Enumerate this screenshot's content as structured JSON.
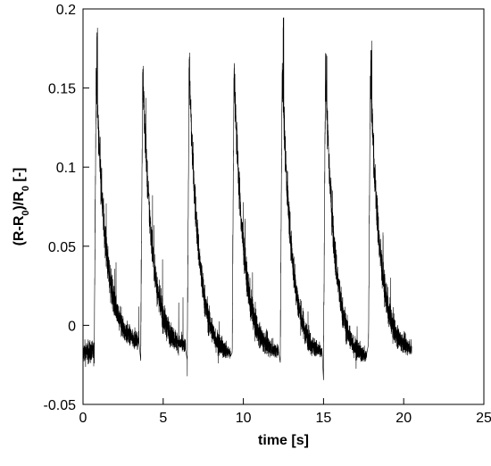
{
  "chart_data": {
    "type": "line",
    "title": "",
    "xlabel": "time [s]",
    "ylabel_parts": [
      "(R-R",
      "0",
      ")/R",
      "0",
      " [-]"
    ],
    "xlim": [
      0,
      25
    ],
    "ylim": [
      -0.05,
      0.2
    ],
    "x_ticks": [
      0,
      5,
      10,
      15,
      20,
      25
    ],
    "y_ticks": [
      -0.05,
      0,
      0.05,
      0.1,
      0.15,
      0.2
    ],
    "x_tick_labels": [
      "0",
      "5",
      "10",
      "15",
      "20",
      "25"
    ],
    "y_tick_labels": [
      "-0.05",
      "0",
      "0.05",
      "0.1",
      "0.15",
      "0.2"
    ],
    "grid": false,
    "legend": "none",
    "line_color": "#000000",
    "series": [
      {
        "values_description_free": true,
        "baseline_segment": {
          "x": [
            0,
            0.7
          ],
          "y_mean": -0.017
        },
        "pulses": [
          {
            "start": 0.7,
            "end": 3.5,
            "peak": 0.16,
            "spike": 0.19,
            "trough": -0.012
          },
          {
            "start": 3.6,
            "end": 6.4,
            "peak": 0.16,
            "spike": 0.192,
            "trough": -0.015
          },
          {
            "start": 6.5,
            "end": 9.2,
            "peak": 0.162,
            "spike": 0.177,
            "trough": -0.02
          },
          {
            "start": 9.3,
            "end": 12.2,
            "peak": 0.162,
            "spike": 0.198,
            "trough": -0.018
          },
          {
            "start": 12.3,
            "end": 14.9,
            "peak": 0.16,
            "spike": 0.195,
            "trough": -0.02
          },
          {
            "start": 15.0,
            "end": 17.7,
            "peak": 0.16,
            "spike": 0.179,
            "trough": -0.022
          },
          {
            "start": 17.8,
            "end": 20.5,
            "peak": 0.16,
            "spike": 0.18,
            "trough": -0.017
          }
        ],
        "noise_amplitude": 0.012,
        "decay_constant": 0.6
      }
    ]
  }
}
